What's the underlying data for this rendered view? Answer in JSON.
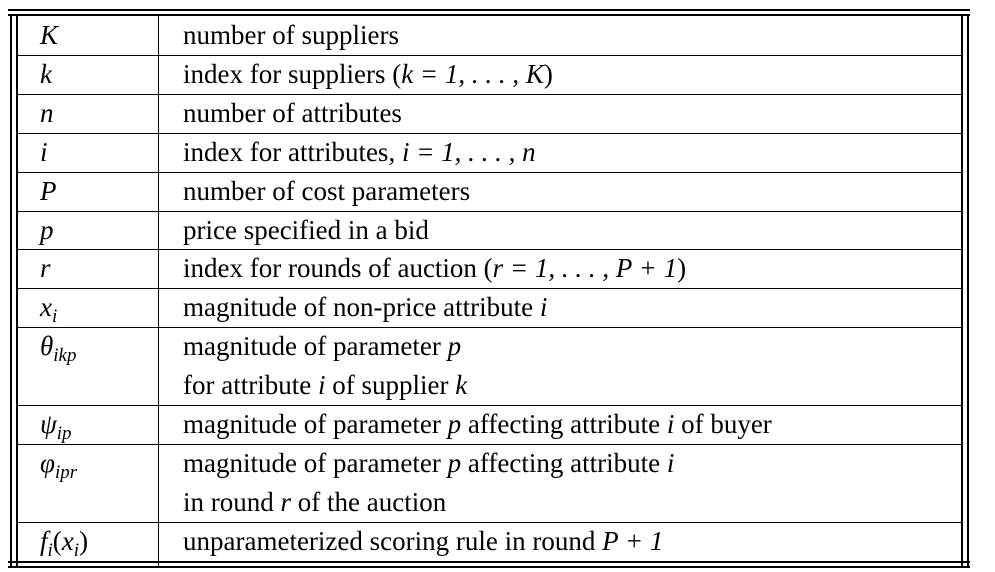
{
  "table": {
    "rows": [
      {
        "symbol": [
          {
            "t": "K"
          }
        ],
        "lines": [
          [
            {
              "t": "number of suppliers"
            }
          ]
        ]
      },
      {
        "symbol": [
          {
            "t": "k"
          }
        ],
        "lines": [
          [
            {
              "t": "index for suppliers ("
            },
            {
              "t": "k = 1, . . . , K",
              "m": true
            },
            {
              "t": ")"
            }
          ]
        ]
      },
      {
        "symbol": [
          {
            "t": "n"
          }
        ],
        "lines": [
          [
            {
              "t": "number of attributes"
            }
          ]
        ]
      },
      {
        "symbol": [
          {
            "t": "i"
          }
        ],
        "lines": [
          [
            {
              "t": "index for attributes, "
            },
            {
              "t": "i = 1, . . . , n",
              "m": true
            }
          ]
        ]
      },
      {
        "symbol": [
          {
            "t": "P"
          }
        ],
        "lines": [
          [
            {
              "t": "number of cost parameters"
            }
          ]
        ]
      },
      {
        "symbol": [
          {
            "t": "p"
          }
        ],
        "lines": [
          [
            {
              "t": "price specified in a bid"
            }
          ]
        ]
      },
      {
        "symbol": [
          {
            "t": "r"
          }
        ],
        "lines": [
          [
            {
              "t": "index for rounds of auction ("
            },
            {
              "t": "r = 1, . . . , P + 1",
              "m": true
            },
            {
              "t": ")"
            }
          ]
        ]
      },
      {
        "symbol": [
          {
            "t": "x"
          },
          {
            "t": "i",
            "sub": true
          }
        ],
        "lines": [
          [
            {
              "t": "magnitude of non-price attribute "
            },
            {
              "t": "i",
              "m": true
            }
          ]
        ]
      },
      {
        "symbol": [
          {
            "t": "θ"
          },
          {
            "t": "ikp",
            "sub": true
          }
        ],
        "lines": [
          [
            {
              "t": "magnitude of parameter "
            },
            {
              "t": "p",
              "m": true
            }
          ],
          [
            {
              "t": "for attribute "
            },
            {
              "t": "i",
              "m": true
            },
            {
              "t": " of supplier "
            },
            {
              "t": "k",
              "m": true
            }
          ]
        ]
      },
      {
        "symbol": [
          {
            "t": "ψ"
          },
          {
            "t": "ip",
            "sub": true
          }
        ],
        "lines": [
          [
            {
              "t": "magnitude of parameter "
            },
            {
              "t": "p",
              "m": true
            },
            {
              "t": " affecting attribute "
            },
            {
              "t": "i",
              "m": true
            },
            {
              "t": " of buyer"
            }
          ]
        ]
      },
      {
        "symbol": [
          {
            "t": "φ"
          },
          {
            "t": "ipr",
            "sub": true
          }
        ],
        "lines": [
          [
            {
              "t": "magnitude of parameter "
            },
            {
              "t": "p",
              "m": true
            },
            {
              "t": " affecting attribute "
            },
            {
              "t": "i",
              "m": true
            }
          ],
          [
            {
              "t": "in round "
            },
            {
              "t": "r",
              "m": true
            },
            {
              "t": " of the auction"
            }
          ]
        ]
      },
      {
        "symbol": [
          {
            "t": "f"
          },
          {
            "t": "i",
            "sub": true
          },
          {
            "t": "(",
            "roman": true
          },
          {
            "t": "x"
          },
          {
            "t": "i",
            "sub": true
          },
          {
            "t": ")",
            "roman": true
          }
        ],
        "lines": [
          [
            {
              "t": "unparameterized scoring rule in round "
            },
            {
              "t": "P + 1",
              "m": true
            }
          ]
        ]
      }
    ]
  }
}
